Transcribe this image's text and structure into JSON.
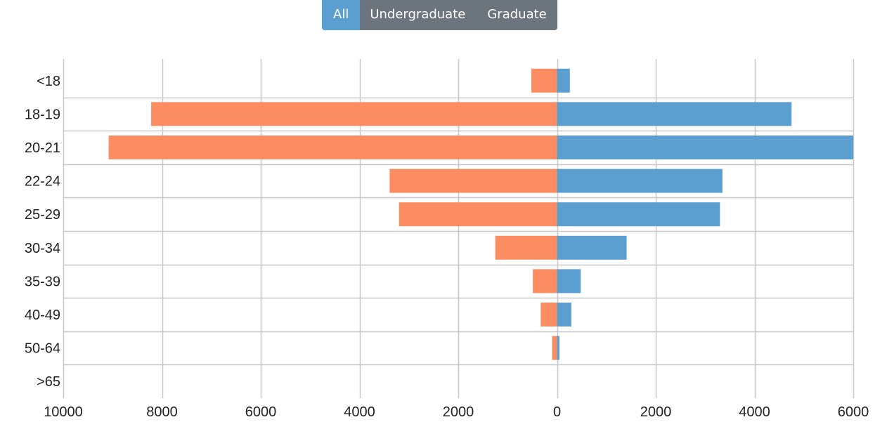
{
  "filter": {
    "buttons": [
      {
        "label": "All",
        "active": true
      },
      {
        "label": "Undergraduate",
        "active": false
      },
      {
        "label": "Graduate",
        "active": false
      }
    ]
  },
  "colors": {
    "left_series": "#fc8d62",
    "right_series": "#5a9fd0",
    "button_active": "#5a9fd0",
    "button_inactive": "#6c757d",
    "grid": "#c8c8c8"
  },
  "chart_data": {
    "type": "bar",
    "orientation": "horizontal-diverging",
    "categories": [
      "<18",
      "18-19",
      "20-21",
      "22-24",
      "25-29",
      "30-34",
      "35-39",
      "40-49",
      "50-64",
      ">65"
    ],
    "series": [
      {
        "side": "left",
        "color": "#fc8d62",
        "values": [
          520,
          8220,
          9080,
          3390,
          3200,
          1250,
          490,
          330,
          100,
          0
        ]
      },
      {
        "side": "right",
        "color": "#5a9fd0",
        "values": [
          260,
          4750,
          6000,
          3350,
          3300,
          1410,
          480,
          290,
          50,
          0
        ]
      }
    ],
    "xlim": [
      -10000,
      6000
    ],
    "xticks": [
      -10000,
      -8000,
      -6000,
      -4000,
      -2000,
      0,
      2000,
      4000,
      6000
    ],
    "xtick_labels": [
      "10000",
      "8000",
      "6000",
      "4000",
      "2000",
      "0",
      "2000",
      "4000",
      "6000"
    ],
    "grid": true,
    "title": "",
    "xlabel": "",
    "ylabel": ""
  }
}
